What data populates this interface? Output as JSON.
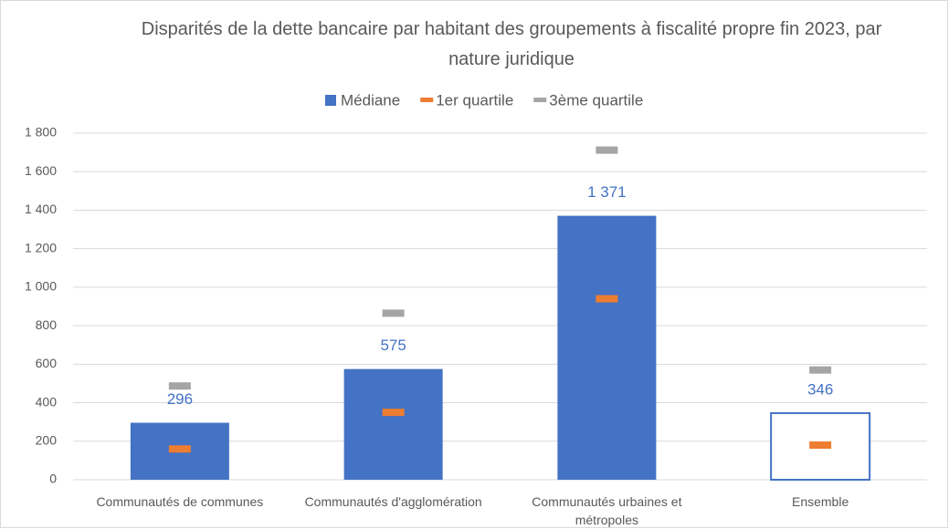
{
  "chart_data": {
    "type": "bar",
    "title": "Disparités de la dette bancaire par habitant des groupements à fiscalité propre fin 2023, par nature juridique",
    "categories": [
      "Communautés de communes",
      "Communautés d'agglomération",
      "Communautés urbaines et métropoles",
      "Ensemble"
    ],
    "series": [
      {
        "name": "Médiane",
        "color": "#4472c4",
        "values": [
          296,
          575,
          1371,
          346
        ],
        "value_labels": [
          "296",
          "575",
          "1 371",
          "346"
        ],
        "hollow": [
          false,
          false,
          false,
          true
        ]
      },
      {
        "name": "1er quartile",
        "color": "#ed7d31",
        "values": [
          160,
          350,
          940,
          180
        ]
      },
      {
        "name": "3ème quartile",
        "color": "#a5a5a5",
        "values": [
          487,
          865,
          1712,
          570
        ]
      }
    ],
    "ylim": [
      0,
      1800
    ],
    "yticks": [
      0,
      200,
      400,
      600,
      800,
      {
        "value": 1000,
        "label": "1 000"
      },
      {
        "value": 1200,
        "label": "1 200"
      },
      {
        "value": 1400,
        "label": "1 400"
      },
      {
        "value": 1600,
        "label": "1 600"
      },
      {
        "value": 1800,
        "label": "1 800"
      }
    ],
    "grid": true,
    "legend": "top"
  }
}
